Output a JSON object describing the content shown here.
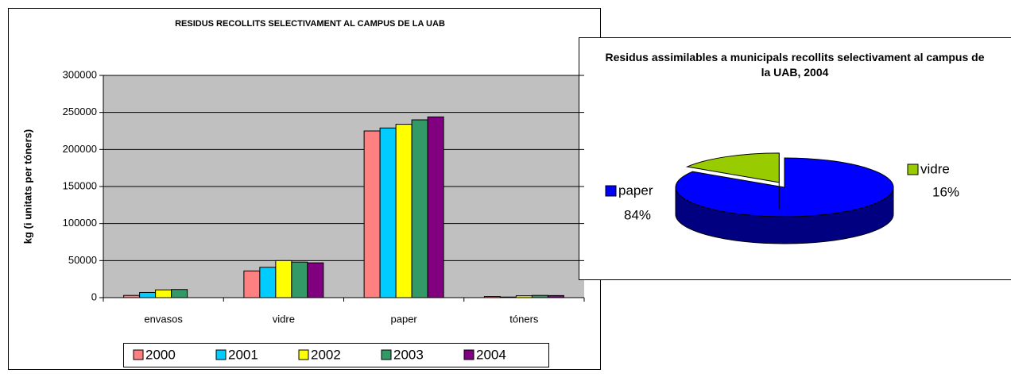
{
  "chart_data": [
    {
      "type": "bar",
      "title": "RESIDUS RECOLLITS SELECTIVAMENT AL CAMPUS DE LA UAB",
      "y_label": "kg (i unitats per tóners)",
      "categories": [
        "envasos",
        "vidre",
        "paper",
        "tóners"
      ],
      "series": [
        {
          "name": "2000",
          "color": "#ff8080",
          "values": [
            3000,
            36000,
            225000,
            1500
          ]
        },
        {
          "name": "2001",
          "color": "#00ccff",
          "values": [
            7000,
            41000,
            229000,
            800
          ]
        },
        {
          "name": "2002",
          "color": "#ffff00",
          "values": [
            10500,
            50000,
            234000,
            2500
          ]
        },
        {
          "name": "2003",
          "color": "#339966",
          "values": [
            11000,
            48000,
            240000,
            3000
          ]
        },
        {
          "name": "2004",
          "color": "#800080",
          "values": [
            0,
            47000,
            244000,
            2800
          ]
        }
      ],
      "ylim": [
        0,
        300000
      ],
      "yticks": [
        0,
        50000,
        100000,
        150000,
        200000,
        250000,
        300000
      ],
      "grid": true,
      "legend": "bottom"
    },
    {
      "type": "pie",
      "title": "Residus assimilables a municipals recollits selectivament al campus de la UAB, 2004",
      "categories": [
        "paper",
        "vidre"
      ],
      "values": [
        84,
        16
      ],
      "value_labels": [
        "84%",
        "16%"
      ],
      "colors": [
        "#0000ff",
        "#99cc00"
      ],
      "side_colors": [
        "#000080",
        "#669900"
      ]
    }
  ]
}
